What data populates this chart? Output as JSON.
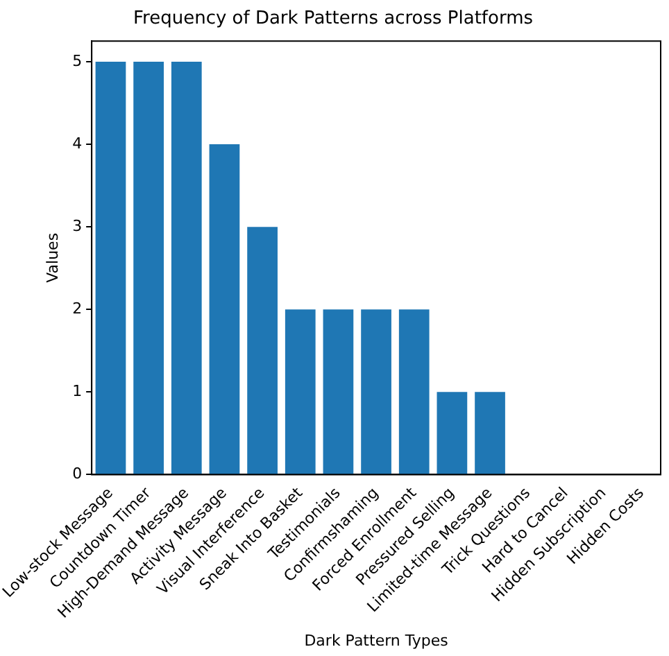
{
  "chart_data": {
    "type": "bar",
    "title": "Frequency of Dark Patterns across Platforms",
    "xlabel": "Dark Pattern Types",
    "ylabel": "Values",
    "categories": [
      "Low-stock Message",
      "Countdown Timer",
      "High-Demand Message",
      "Activity Message",
      "Visual Interference",
      "Sneak Into Basket",
      "Testimonials",
      "Confirmshaming",
      "Forced Enrollment",
      "Pressured Selling",
      "Limited-time Message",
      "Trick Questions",
      "Hard to Cancel",
      "Hidden Subscription",
      "Hidden Costs"
    ],
    "values": [
      5,
      5,
      5,
      4,
      3,
      2,
      2,
      2,
      2,
      1,
      1,
      0,
      0,
      0,
      0
    ],
    "color": "#1f77b4",
    "ylim": [
      0,
      5.25
    ],
    "yticks": [
      0,
      1,
      2,
      3,
      4,
      5
    ],
    "grid": false,
    "legend": false
  }
}
